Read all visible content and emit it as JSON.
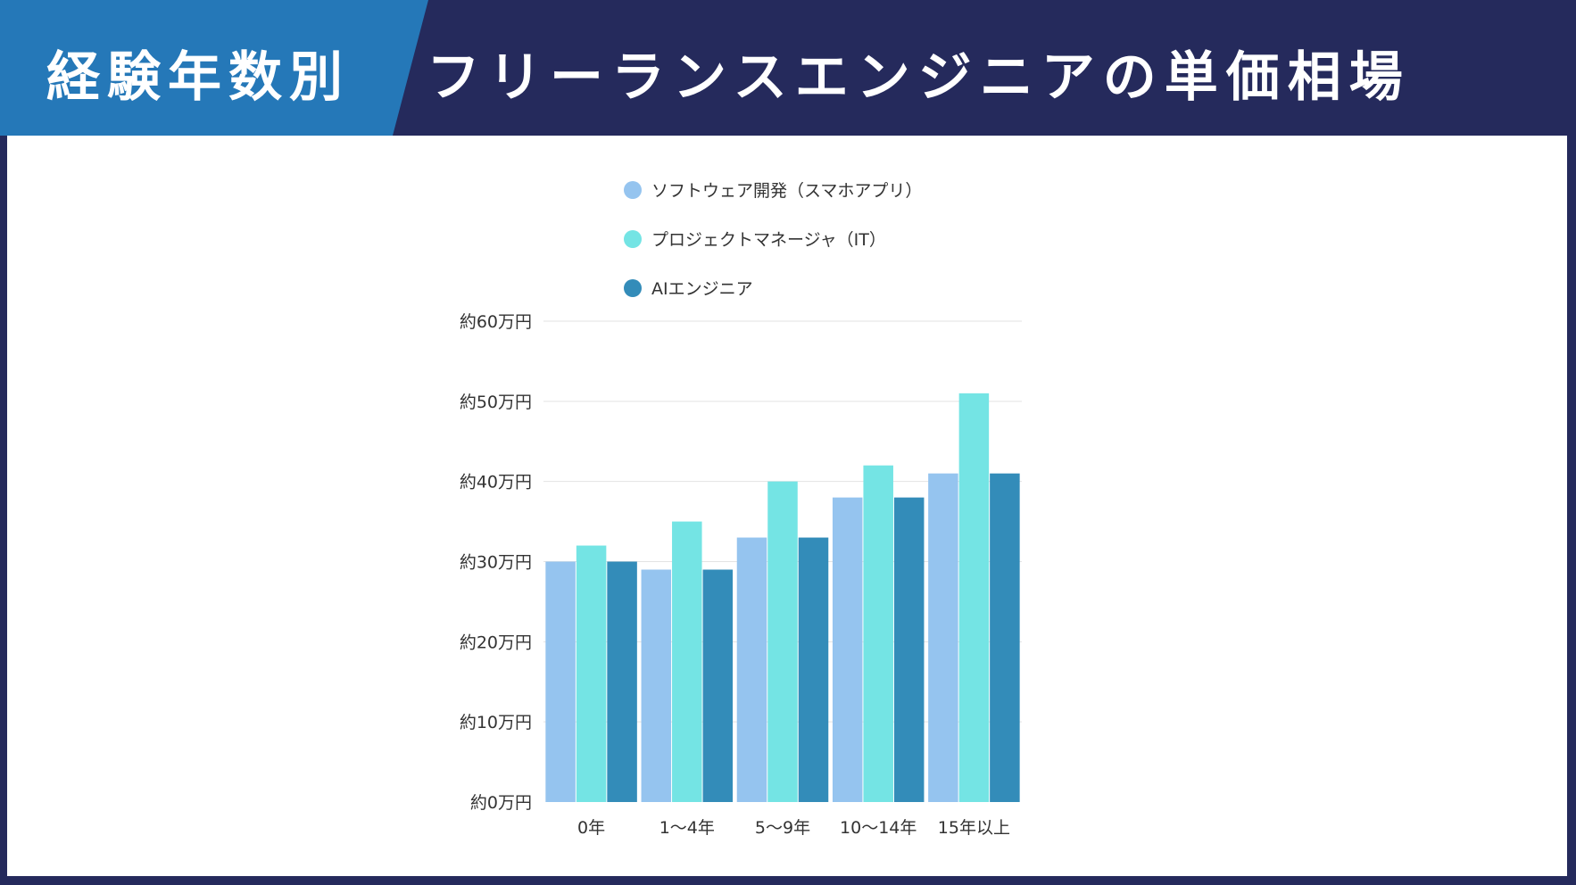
{
  "header": {
    "category_label": "経験年数別",
    "title": "フリーランスエンジニアの単価相場"
  },
  "colors": {
    "header_bg": "#252a5c",
    "header_tab": "#2578b8",
    "panel_bg": "#ffffff"
  },
  "chart_data": {
    "type": "bar",
    "title": "",
    "xlabel": "",
    "ylabel": "",
    "categories": [
      "0年",
      "1〜4年",
      "5〜9年",
      "10〜14年",
      "15年以上"
    ],
    "series": [
      {
        "name": "ソフトウェア開発（スマホアプリ）",
        "color": "#95c4ef",
        "values": [
          30,
          29,
          33,
          38,
          41
        ]
      },
      {
        "name": "プロジェクトマネージャ（IT）",
        "color": "#74e4e4",
        "values": [
          32,
          35,
          40,
          42,
          51
        ]
      },
      {
        "name": "AIエンジニア",
        "color": "#338cb9",
        "values": [
          30,
          29,
          33,
          38,
          41
        ]
      }
    ],
    "ylim": [
      0,
      60
    ],
    "yticks": [
      0,
      10,
      20,
      30,
      40,
      50,
      60
    ],
    "ytick_labels": [
      "約0万円",
      "約10万円",
      "約20万円",
      "約30万円",
      "約40万円",
      "約50万円",
      "約60万円"
    ],
    "grid": true,
    "legend_position": "top-center"
  }
}
